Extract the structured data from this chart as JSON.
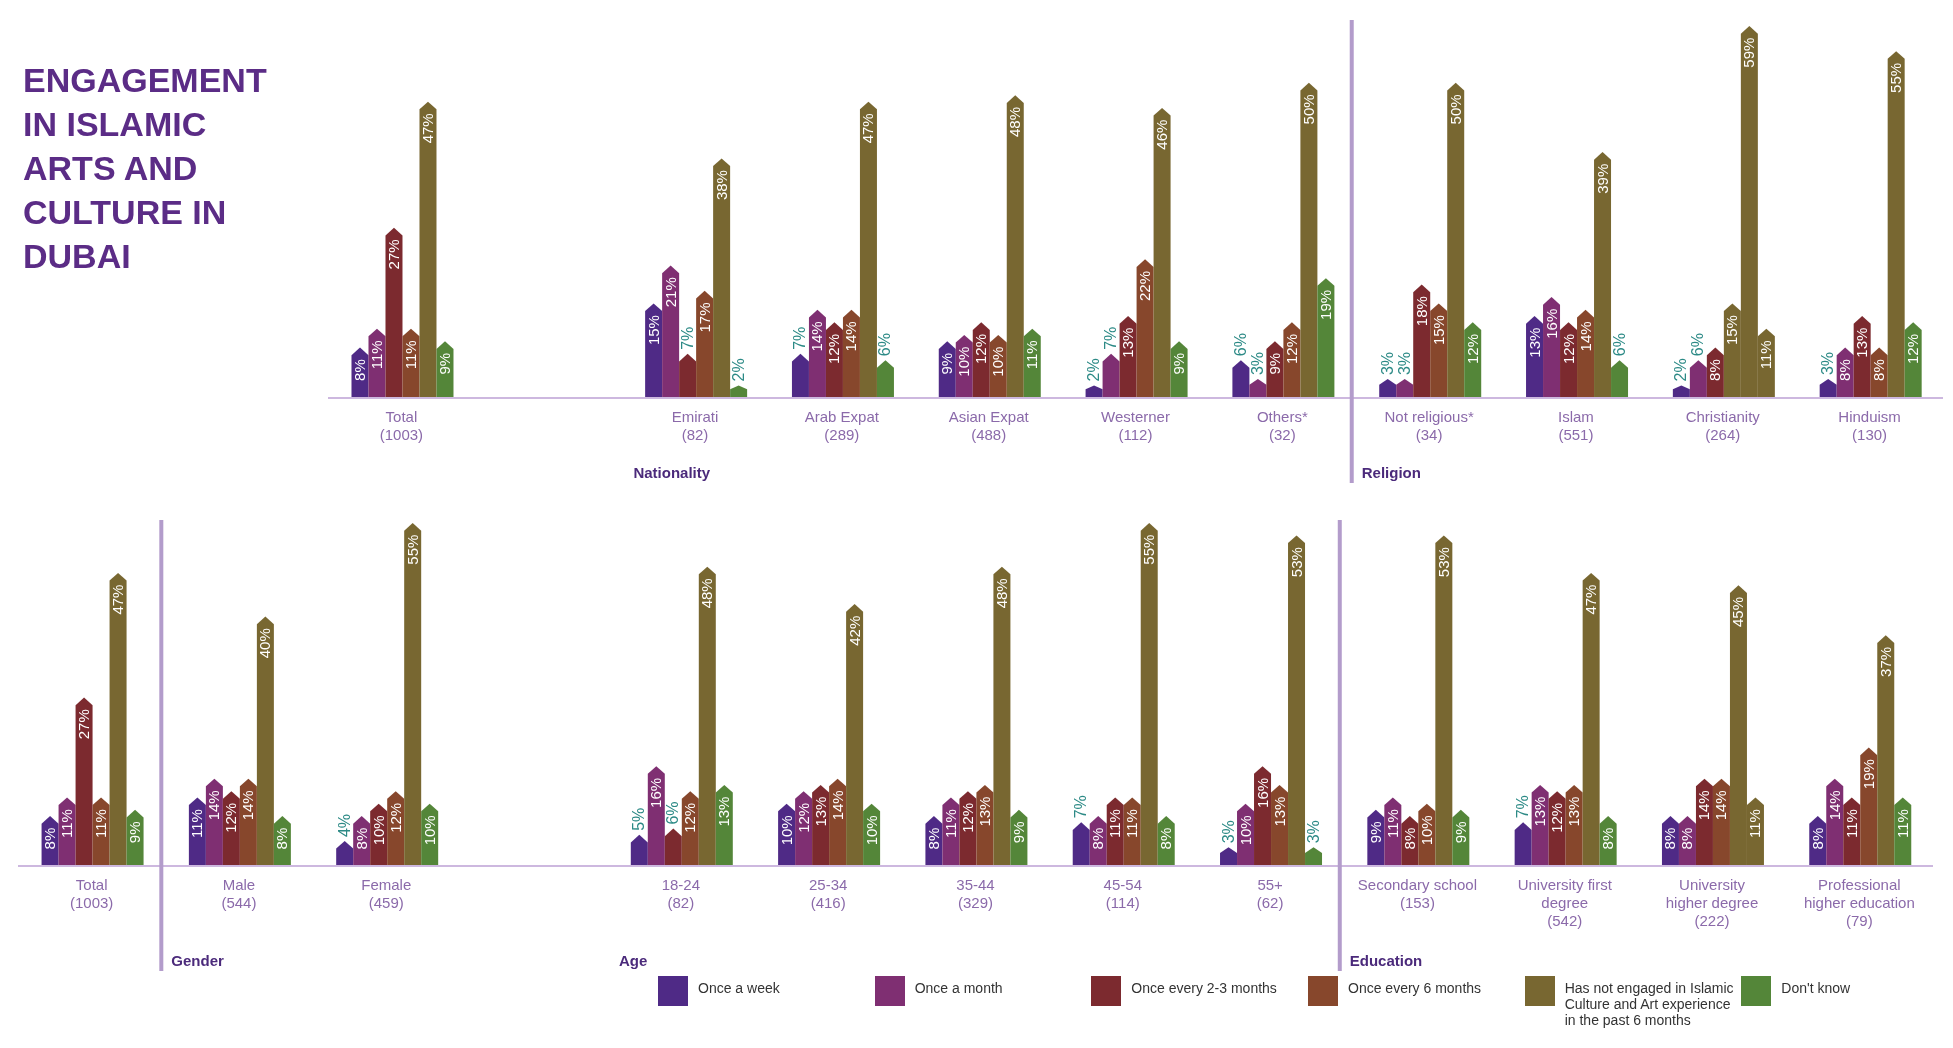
{
  "chart_data": [
    {
      "type": "bar",
      "title": "ENGAGEMENT IN ISLAMIC ARTS AND CULTURE IN DUBAI",
      "categories": [
        "Total (1003)",
        null,
        "Emirati (82)",
        "Arab Expat (289)",
        "Asian Expat (488)",
        "Westerner (112)",
        "Others* (32)",
        "Not religious* (34)",
        "Islam (551)",
        "Christianity (264)",
        "Hinduism (130)"
      ],
      "series": [
        {
          "color": "#4f2a86",
          "values": [
            8,
            null,
            15,
            7,
            9,
            2,
            6,
            3,
            13,
            2,
            3
          ],
          "value_labels": [
            "8%",
            null,
            "15%",
            "7%",
            "9%",
            "2%",
            "6%",
            "3%",
            "13%",
            "2%",
            "3%"
          ]
        },
        {
          "color": "#7f2f72",
          "values": [
            11,
            null,
            21,
            14,
            10,
            7,
            3,
            3,
            16,
            6,
            8
          ],
          "value_labels": [
            "11%",
            null,
            "21%",
            "14%",
            "10%",
            "7%",
            "3%",
            "3%",
            "16%",
            "6%",
            "8%"
          ]
        },
        {
          "color": "#7c2a2f",
          "values": [
            27,
            null,
            7,
            12,
            12,
            13,
            9,
            18,
            12,
            8,
            13
          ],
          "value_labels": [
            "27%",
            null,
            "7%",
            "12%",
            "12%",
            "13%",
            "9%",
            "18%",
            "12%",
            "8%",
            "13%"
          ]
        },
        {
          "color": "#87472c",
          "colors": [
            "#87472c",
            null,
            "#87472c",
            "#87472c",
            "#87472c",
            "#87472c",
            "#87472c",
            "#87472c",
            "#87472c",
            "#786731",
            "#87472c"
          ],
          "values": [
            11,
            null,
            17,
            14,
            10,
            22,
            12,
            15,
            14,
            15,
            8
          ],
          "value_labels": [
            "11%",
            null,
            "17%",
            "14%",
            "10%",
            "22%",
            "12%",
            "15%",
            "14%",
            "15%",
            "8%"
          ]
        },
        {
          "color": "#786731",
          "values": [
            47,
            null,
            38,
            47,
            48,
            46,
            50,
            50,
            39,
            59,
            55
          ],
          "value_labels": [
            "47%",
            null,
            "38%",
            "47%",
            "48%",
            "46%",
            "50%",
            "50%",
            "39%",
            "59%",
            "55%"
          ]
        },
        {
          "color": "#548639",
          "colors": [
            "#548639",
            null,
            "#548639",
            "#548639",
            "#548639",
            "#548639",
            "#548639",
            "#548639",
            "#548639",
            "#786731",
            "#548639"
          ],
          "values": [
            9,
            null,
            2,
            6,
            11,
            9,
            19,
            12,
            6,
            11,
            12
          ],
          "value_labels": [
            "9%",
            null,
            "2%",
            "6%",
            "11%",
            "9%",
            "19%",
            "12%",
            "6%",
            "11%",
            "12%"
          ]
        }
      ],
      "annotations": [
        "Nationality",
        "Religion"
      ]
    },
    {
      "type": "bar",
      "categories": [
        "Total (1003)",
        "Male (544)",
        "Female (459)",
        null,
        "18-24 (82)",
        "25-34 (416)",
        "35-44 (329)",
        "45-54 (114)",
        "55+ (62)",
        "Secondary school (153)",
        "University first degree (542)",
        "University higher degree (222)",
        "Professional higher education (79)"
      ],
      "series": [
        {
          "name": "Once a week",
          "color": "#4f2a86",
          "values": [
            8,
            11,
            4,
            null,
            5,
            10,
            8,
            7,
            3,
            9,
            7,
            8,
            8
          ],
          "value_labels": [
            "8%",
            "11%",
            "4%",
            null,
            "5%",
            "10%",
            "8%",
            "7%",
            "3%",
            "9%",
            "7%",
            "8%",
            "8%"
          ]
        },
        {
          "name": "Once a month",
          "color": "#7f2f72",
          "values": [
            11,
            14,
            8,
            null,
            16,
            12,
            11,
            8,
            10,
            11,
            13,
            8,
            14
          ],
          "value_labels": [
            "11%",
            "14%",
            "8%",
            null,
            "16%",
            "12%",
            "11%",
            "8%",
            "10%",
            "11%",
            "13%",
            "8%",
            "14%"
          ]
        },
        {
          "name": "Once every 2-3 months",
          "color": "#7c2a2f",
          "values": [
            27,
            12,
            10,
            null,
            6,
            13,
            12,
            11,
            16,
            8,
            12,
            14,
            11
          ],
          "value_labels": [
            "27%",
            "12%",
            "10%",
            null,
            "6%",
            "13%",
            "12%",
            "11%",
            "16%",
            "8%",
            "12%",
            "14%",
            "11%"
          ]
        },
        {
          "name": "Once every 6 months",
          "color": "#87472c",
          "values": [
            11,
            14,
            12,
            null,
            12,
            14,
            13,
            11,
            13,
            10,
            13,
            14,
            19
          ],
          "value_labels": [
            "11%",
            "14%",
            "12%",
            null,
            "12%",
            "14%",
            "13%",
            "11%",
            "13%",
            "10%",
            "13%",
            "14%",
            "19%"
          ]
        },
        {
          "name": "Has not engaged in Islamic Culture and Art experience in the past 6 months",
          "color": "#786731",
          "values": [
            47,
            40,
            55,
            null,
            48,
            42,
            48,
            55,
            53,
            53,
            47,
            45,
            37
          ],
          "value_labels": [
            "47%",
            "40%",
            "55%",
            null,
            "48%",
            "42%",
            "48%",
            "55%",
            "53%",
            "53%",
            "47%",
            "45%",
            "37%"
          ]
        },
        {
          "name": "Don't know",
          "color": "#548639",
          "colors": [
            "#548639",
            "#548639",
            "#548639",
            null,
            "#548639",
            "#548639",
            "#548639",
            "#548639",
            "#548639",
            "#548639",
            "#548639",
            "#786731",
            "#548639"
          ],
          "values": [
            9,
            8,
            10,
            null,
            13,
            10,
            9,
            8,
            3,
            9,
            8,
            11,
            11
          ],
          "value_labels": [
            "9%",
            "8%",
            "10%",
            null,
            "13%",
            "10%",
            "9%",
            "8%",
            "3%",
            "9%",
            "8%",
            "11%",
            "11%"
          ]
        }
      ],
      "annotations": [
        "Gender",
        "Age",
        "Education"
      ],
      "legend": "bottom"
    }
  ]
}
